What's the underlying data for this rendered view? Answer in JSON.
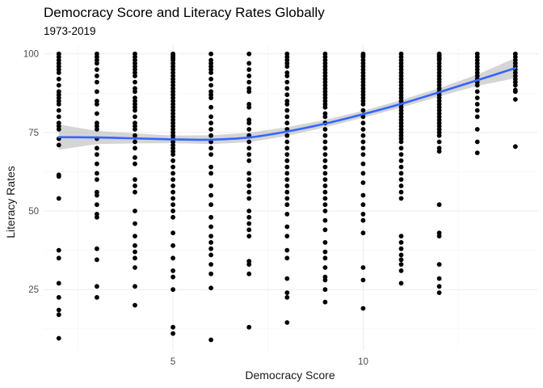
{
  "chart_data": {
    "type": "scatter",
    "title": "Democracy Score and Literacy Rates Globally",
    "subtitle": "1973-2019",
    "xlabel": "Democracy Score",
    "ylabel": "Literacy Rates",
    "xlim": [
      1.6,
      14.6
    ],
    "ylim": [
      5.5,
      103
    ],
    "x_ticks": [
      5,
      10
    ],
    "x_tick_labels": [
      "5",
      "10"
    ],
    "y_ticks": [
      25,
      50,
      75,
      100
    ],
    "y_tick_labels": [
      "25",
      "50",
      "75",
      "100"
    ],
    "grid": true,
    "legend": "none",
    "colors": {
      "points": "#000000",
      "smooth": "#3366FF",
      "ribbon": "#bfbfbf"
    },
    "points_by_x": [
      {
        "x": 2,
        "y": [
          100,
          99,
          98,
          97,
          96,
          95,
          94,
          92,
          90,
          88,
          87,
          86,
          85,
          84,
          82,
          80,
          78,
          77,
          76,
          73,
          71,
          61.5,
          61,
          54,
          37.5,
          35,
          27,
          22.5,
          18.5,
          17,
          9.5
        ]
      },
      {
        "x": 3,
        "y": [
          100,
          99,
          98,
          97,
          95,
          93,
          91,
          88,
          85,
          84,
          81,
          78,
          77,
          76,
          73,
          70,
          68,
          65,
          62,
          60,
          56,
          55,
          52,
          49,
          48,
          38,
          34.5,
          26,
          22.5
        ]
      },
      {
        "x": 4,
        "y": [
          100,
          99,
          98,
          97,
          96,
          95,
          94,
          93,
          91,
          89,
          88,
          86,
          85,
          84,
          83,
          82,
          80,
          78,
          77,
          76,
          74,
          72,
          70,
          67,
          65,
          60,
          58,
          56,
          50,
          46,
          42,
          39,
          37,
          35,
          32,
          26,
          20
        ]
      },
      {
        "x": 5,
        "y": [
          100,
          99.5,
          99,
          98.5,
          98,
          97,
          96,
          95,
          94,
          93,
          92,
          91,
          90,
          89,
          88,
          87,
          86,
          85,
          84,
          83,
          82,
          81,
          80,
          79,
          78,
          77,
          76,
          75,
          74,
          73,
          72,
          71,
          70,
          69,
          68,
          66,
          64,
          62,
          60,
          58,
          56,
          54,
          52,
          50,
          48,
          43,
          39,
          35,
          31,
          29,
          25,
          13,
          11
        ]
      },
      {
        "x": 6,
        "y": [
          100,
          98,
          97,
          96,
          95,
          94,
          92,
          90,
          88,
          87,
          86,
          83,
          80,
          78,
          76,
          74,
          72,
          70,
          68,
          64,
          62,
          58,
          55,
          52,
          48,
          45,
          42,
          40,
          38,
          36,
          33,
          30,
          25.5,
          9
        ]
      },
      {
        "x": 7,
        "y": [
          100,
          97,
          95,
          93,
          91,
          89,
          88,
          84,
          83,
          79,
          78,
          76,
          74,
          72,
          70,
          68,
          66,
          62,
          60,
          58,
          56,
          54,
          50,
          48,
          46,
          44,
          42,
          34,
          33,
          30,
          13
        ]
      },
      {
        "x": 8,
        "y": [
          100,
          99,
          98,
          97,
          96,
          94,
          93,
          91,
          89,
          87,
          85,
          84,
          82,
          80,
          78,
          76,
          74,
          72,
          70,
          68,
          66,
          64,
          62,
          60,
          58,
          56,
          54,
          52,
          49,
          45,
          42,
          37.5,
          35,
          28.5,
          24,
          22.5,
          14.5
        ]
      },
      {
        "x": 9,
        "y": [
          100,
          99,
          98,
          97,
          96,
          95,
          94,
          93,
          92,
          91,
          90,
          89,
          88,
          87,
          86,
          85,
          84,
          83,
          81,
          80,
          78,
          76,
          74,
          72,
          70,
          68,
          66,
          64,
          62,
          60,
          58,
          56,
          54,
          52,
          50,
          47,
          44,
          40,
          37,
          35,
          32,
          29,
          28,
          25,
          21
        ]
      },
      {
        "x": 10,
        "y": [
          100,
          99.5,
          99,
          98,
          97,
          96,
          95,
          94,
          93,
          92,
          91,
          90,
          89,
          88,
          87,
          86,
          85,
          84,
          82,
          80,
          78,
          76,
          74,
          72,
          70,
          68,
          65,
          62,
          59,
          55,
          52,
          49,
          47,
          43,
          32,
          28,
          19
        ]
      },
      {
        "x": 11,
        "y": [
          100,
          99,
          98,
          97,
          96,
          95,
          94,
          93,
          92,
          91,
          90,
          89,
          88,
          87,
          86,
          85,
          84,
          83,
          82,
          81,
          80,
          79,
          78,
          77,
          76,
          75,
          74,
          73,
          72,
          70,
          68,
          66,
          64,
          62,
          60,
          58,
          56,
          54,
          42,
          40,
          38,
          36,
          34.5,
          33,
          31,
          27
        ]
      },
      {
        "x": 12,
        "y": [
          100,
          99.5,
          99,
          98.5,
          98,
          97,
          96,
          95,
          94,
          93,
          92,
          91,
          90,
          89,
          88,
          87,
          86,
          85,
          84,
          83,
          82,
          81,
          80,
          79,
          78,
          77,
          76,
          75,
          74,
          72,
          70,
          69,
          52,
          43,
          42,
          33,
          28.5,
          26,
          24
        ]
      },
      {
        "x": 13,
        "y": [
          100,
          99,
          98,
          97,
          96,
          95,
          94,
          93,
          92,
          91,
          90,
          88,
          86,
          84,
          82,
          80,
          76,
          72,
          68.5
        ]
      },
      {
        "x": 14,
        "y": [
          100,
          99,
          98,
          97,
          96,
          95,
          94,
          93,
          92,
          91,
          90,
          88.5,
          88,
          85.5,
          70.5
        ]
      }
    ],
    "smooth_line": {
      "x": [
        2,
        3,
        4,
        5,
        6,
        7,
        8,
        9,
        10,
        11,
        12,
        13,
        14
      ],
      "y": [
        73.5,
        73.4,
        73.1,
        72.8,
        72.7,
        73.4,
        75.3,
        77.8,
        80.8,
        84.1,
        87.8,
        91.6,
        95.5
      ],
      "lower": [
        69.5,
        71.3,
        71.5,
        71.6,
        71.3,
        71.9,
        73.9,
        76.6,
        79.7,
        82.9,
        86.5,
        89.8,
        92.3
      ],
      "upper": [
        77.5,
        75.5,
        74.7,
        74.0,
        74.1,
        74.9,
        76.7,
        79.0,
        81.9,
        85.3,
        89.1,
        93.4,
        98.7
      ]
    }
  }
}
